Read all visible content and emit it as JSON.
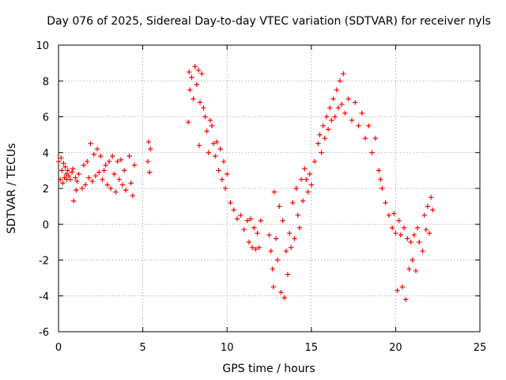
{
  "chart_data": {
    "type": "scatter",
    "title": "Day 076 of 2025, Sidereal Day-to-day VTEC variation (SDTVAR) for receiver nyls",
    "xlabel": "GPS time / hours",
    "ylabel": "SDTVAR / TECUs",
    "xlim": [
      0,
      25
    ],
    "ylim": [
      -6,
      10
    ],
    "xticks": [
      0,
      5,
      10,
      15,
      20,
      25
    ],
    "yticks": [
      -6,
      -4,
      -2,
      0,
      2,
      4,
      6,
      8,
      10
    ],
    "xtick_labels": [
      "0",
      "5",
      "10",
      "15",
      "20",
      "25"
    ],
    "ytick_labels": [
      "-6",
      "-4",
      "-2",
      "0",
      "2",
      "4",
      "6",
      "8",
      "10"
    ],
    "grid": true,
    "marker": "+",
    "marker_color": "#ff0000",
    "series": [
      {
        "name": "SDTVAR",
        "color": "#ff0000",
        "points": [
          [
            0.0,
            3.5
          ],
          [
            0.1,
            2.5
          ],
          [
            0.15,
            3.7
          ],
          [
            0.2,
            3.0
          ],
          [
            0.25,
            2.3
          ],
          [
            0.3,
            3.4
          ],
          [
            0.35,
            2.6
          ],
          [
            0.4,
            3.2
          ],
          [
            0.45,
            2.8
          ],
          [
            0.5,
            2.5
          ],
          [
            0.55,
            3.0
          ],
          [
            0.6,
            2.7
          ],
          [
            0.7,
            2.5
          ],
          [
            0.8,
            2.9
          ],
          [
            0.85,
            3.1
          ],
          [
            0.9,
            1.3
          ],
          [
            1.0,
            2.6
          ],
          [
            1.05,
            1.9
          ],
          [
            1.1,
            2.4
          ],
          [
            1.2,
            2.8
          ],
          [
            1.4,
            2.0
          ],
          [
            1.5,
            3.3
          ],
          [
            1.6,
            2.2
          ],
          [
            1.7,
            3.5
          ],
          [
            1.8,
            2.6
          ],
          [
            1.9,
            4.5
          ],
          [
            2.0,
            2.4
          ],
          [
            2.1,
            3.9
          ],
          [
            2.2,
            2.7
          ],
          [
            2.3,
            4.2
          ],
          [
            2.4,
            2.9
          ],
          [
            2.5,
            3.8
          ],
          [
            2.6,
            2.5
          ],
          [
            2.7,
            3.0
          ],
          [
            2.8,
            3.3
          ],
          [
            2.9,
            2.2
          ],
          [
            3.0,
            3.5
          ],
          [
            3.1,
            2.0
          ],
          [
            3.2,
            3.8
          ],
          [
            3.3,
            2.8
          ],
          [
            3.4,
            1.8
          ],
          [
            3.5,
            3.5
          ],
          [
            3.6,
            2.5
          ],
          [
            3.7,
            3.6
          ],
          [
            3.8,
            2.2
          ],
          [
            3.9,
            3.0
          ],
          [
            4.0,
            1.9
          ],
          [
            4.2,
            3.8
          ],
          [
            4.3,
            2.3
          ],
          [
            4.4,
            1.6
          ],
          [
            4.5,
            3.3
          ],
          [
            5.3,
            3.5
          ],
          [
            5.35,
            4.6
          ],
          [
            5.4,
            2.9
          ],
          [
            5.45,
            4.2
          ],
          [
            7.7,
            5.7
          ],
          [
            7.75,
            8.5
          ],
          [
            7.8,
            7.5
          ],
          [
            7.9,
            8.2
          ],
          [
            8.0,
            7.0
          ],
          [
            8.1,
            8.8
          ],
          [
            8.2,
            7.8
          ],
          [
            8.3,
            8.6
          ],
          [
            8.35,
            4.4
          ],
          [
            8.4,
            6.8
          ],
          [
            8.5,
            8.4
          ],
          [
            8.6,
            6.5
          ],
          [
            8.7,
            6.0
          ],
          [
            8.8,
            5.2
          ],
          [
            8.9,
            4.0
          ],
          [
            9.0,
            5.8
          ],
          [
            9.1,
            5.5
          ],
          [
            9.2,
            4.5
          ],
          [
            9.3,
            3.8
          ],
          [
            9.4,
            4.6
          ],
          [
            9.5,
            3.0
          ],
          [
            9.6,
            4.2
          ],
          [
            9.7,
            2.5
          ],
          [
            9.8,
            3.5
          ],
          [
            9.9,
            2.0
          ],
          [
            10.0,
            2.8
          ],
          [
            10.2,
            1.2
          ],
          [
            10.4,
            0.8
          ],
          [
            10.6,
            0.3
          ],
          [
            10.8,
            0.5
          ],
          [
            11.0,
            -0.3
          ],
          [
            11.2,
            0.2
          ],
          [
            11.3,
            -1.0
          ],
          [
            11.4,
            0.3
          ],
          [
            11.5,
            -1.3
          ],
          [
            11.6,
            -0.2
          ],
          [
            11.7,
            -1.4
          ],
          [
            11.8,
            -0.5
          ],
          [
            11.9,
            -1.3
          ],
          [
            12.0,
            0.2
          ],
          [
            12.5,
            -0.6
          ],
          [
            12.6,
            -1.5
          ],
          [
            12.7,
            -2.5
          ],
          [
            12.75,
            -3.5
          ],
          [
            12.8,
            1.8
          ],
          [
            12.9,
            -0.8
          ],
          [
            13.0,
            -2.0
          ],
          [
            13.1,
            1.0
          ],
          [
            13.2,
            -3.8
          ],
          [
            13.3,
            0.2
          ],
          [
            13.4,
            -4.1
          ],
          [
            13.5,
            -1.5
          ],
          [
            13.6,
            -2.8
          ],
          [
            13.7,
            -0.5
          ],
          [
            13.8,
            -1.3
          ],
          [
            13.9,
            1.2
          ],
          [
            14.0,
            -0.8
          ],
          [
            14.1,
            2.0
          ],
          [
            14.2,
            0.5
          ],
          [
            14.3,
            -0.2
          ],
          [
            14.4,
            2.5
          ],
          [
            14.5,
            1.3
          ],
          [
            14.6,
            3.1
          ],
          [
            14.7,
            2.5
          ],
          [
            14.8,
            1.8
          ],
          [
            14.9,
            2.8
          ],
          [
            15.0,
            2.2
          ],
          [
            15.2,
            3.5
          ],
          [
            15.4,
            4.5
          ],
          [
            15.5,
            5.0
          ],
          [
            15.6,
            4.0
          ],
          [
            15.7,
            5.5
          ],
          [
            15.8,
            4.8
          ],
          [
            15.9,
            6.0
          ],
          [
            16.0,
            5.3
          ],
          [
            16.1,
            6.5
          ],
          [
            16.2,
            5.8
          ],
          [
            16.3,
            7.0
          ],
          [
            16.4,
            6.0
          ],
          [
            16.5,
            7.5
          ],
          [
            16.6,
            6.5
          ],
          [
            16.7,
            8.0
          ],
          [
            16.8,
            6.7
          ],
          [
            16.9,
            8.4
          ],
          [
            17.0,
            6.2
          ],
          [
            17.2,
            7.0
          ],
          [
            17.4,
            5.8
          ],
          [
            17.6,
            6.8
          ],
          [
            17.8,
            5.5
          ],
          [
            18.0,
            6.2
          ],
          [
            18.2,
            4.8
          ],
          [
            18.4,
            5.5
          ],
          [
            18.6,
            4.0
          ],
          [
            18.8,
            4.8
          ],
          [
            19.0,
            3.0
          ],
          [
            19.1,
            2.5
          ],
          [
            19.2,
            2.0
          ],
          [
            19.4,
            1.2
          ],
          [
            19.6,
            0.5
          ],
          [
            19.8,
            -0.2
          ],
          [
            19.9,
            0.6
          ],
          [
            20.0,
            -0.5
          ],
          [
            20.1,
            -3.7
          ],
          [
            20.2,
            0.2
          ],
          [
            20.3,
            -0.6
          ],
          [
            20.4,
            -3.5
          ],
          [
            20.5,
            -0.2
          ],
          [
            20.6,
            -4.2
          ],
          [
            20.7,
            -0.8
          ],
          [
            20.8,
            -2.5
          ],
          [
            20.9,
            -1.0
          ],
          [
            21.0,
            -2.0
          ],
          [
            21.1,
            -0.6
          ],
          [
            21.2,
            -2.6
          ],
          [
            21.3,
            -0.2
          ],
          [
            21.4,
            -1.0
          ],
          [
            21.6,
            -1.5
          ],
          [
            21.7,
            0.5
          ],
          [
            21.8,
            -0.3
          ],
          [
            21.9,
            1.0
          ],
          [
            22.0,
            -0.5
          ],
          [
            22.1,
            1.5
          ],
          [
            22.2,
            0.8
          ]
        ]
      }
    ]
  }
}
